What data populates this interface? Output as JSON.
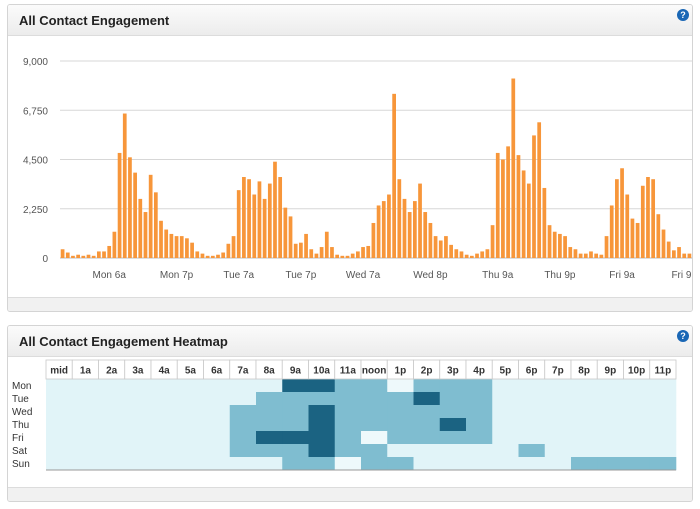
{
  "panels": {
    "engagement": {
      "title": "All Contact Engagement",
      "help_icon": "?"
    },
    "heatmap": {
      "title": "All Contact Engagement Heatmap",
      "help_icon": "?"
    }
  },
  "colors": {
    "bar": "#f7963a",
    "heat_low": "#e1f4f8",
    "heat_mid": "#7fbdd0",
    "heat_high": "#1b6382"
  },
  "chart_data": [
    {
      "type": "bar",
      "title": "All Contact Engagement",
      "ylim": [
        0,
        9000
      ],
      "yticks": [
        0,
        2250,
        4500,
        6750,
        9000
      ],
      "ytick_labels": [
        "0",
        "2,250",
        "4,500",
        "6,750",
        "9,000"
      ],
      "xtick_labels": [
        {
          "label": "Mon 6a",
          "index": 9
        },
        {
          "label": "Mon 7p",
          "index": 22
        },
        {
          "label": "Tue 7a",
          "index": 34
        },
        {
          "label": "Tue 7p",
          "index": 46
        },
        {
          "label": "Wed 7a",
          "index": 58
        },
        {
          "label": "Wed 8p",
          "index": 71
        },
        {
          "label": "Thu 9a",
          "index": 84
        },
        {
          "label": "Thu 9p",
          "index": 96
        },
        {
          "label": "Fri 9a",
          "index": 108
        },
        {
          "label": "Fri 9p",
          "index": 120
        }
      ],
      "values": [
        400,
        250,
        100,
        150,
        100,
        150,
        100,
        300,
        300,
        550,
        1200,
        4800,
        6600,
        4600,
        3900,
        2700,
        2100,
        3800,
        3000,
        1700,
        1300,
        1100,
        1000,
        1000,
        900,
        700,
        300,
        200,
        100,
        100,
        150,
        250,
        650,
        1000,
        3100,
        3700,
        3600,
        2900,
        3500,
        2700,
        3400,
        4400,
        3700,
        2300,
        1900,
        650,
        700,
        1100,
        400,
        200,
        500,
        1200,
        500,
        150,
        100,
        100,
        200,
        300,
        500,
        550,
        1600,
        2400,
        2600,
        2900,
        7500,
        3600,
        2700,
        2100,
        2600,
        3400,
        2100,
        1600,
        1000,
        800,
        1000,
        600,
        400,
        300,
        150,
        100,
        200,
        300,
        400,
        1500,
        4800,
        4500,
        5100,
        8200,
        4700,
        4000,
        3400,
        5600,
        6200,
        3200,
        1500,
        1200,
        1100,
        1000,
        500,
        400,
        200,
        200,
        300,
        200,
        150,
        1000,
        2400,
        3600,
        4100,
        2900,
        1800,
        1600,
        3300,
        3700,
        3600,
        2000,
        1300,
        750,
        350,
        500,
        200,
        200
      ]
    },
    {
      "type": "heatmap",
      "title": "All Contact Engagement Heatmap",
      "columns": [
        "mid",
        "1a",
        "2a",
        "3a",
        "4a",
        "5a",
        "6a",
        "7a",
        "8a",
        "9a",
        "10a",
        "11a",
        "noon",
        "1p",
        "2p",
        "3p",
        "4p",
        "5p",
        "6p",
        "7p",
        "8p",
        "9p",
        "10p",
        "11p"
      ],
      "rows": [
        "Mon",
        "Tue",
        "Wed",
        "Thu",
        "Fri",
        "Sat",
        "Sun"
      ],
      "levels": [
        [
          0,
          0,
          0,
          0,
          0,
          0,
          0,
          0,
          0,
          3,
          3,
          2,
          2,
          1,
          2,
          2,
          2,
          0,
          0,
          0,
          0,
          0,
          0,
          0
        ],
        [
          0,
          0,
          0,
          0,
          0,
          0,
          0,
          0,
          2,
          2,
          2,
          2,
          2,
          2,
          3,
          2,
          2,
          0,
          0,
          0,
          0,
          0,
          0,
          0
        ],
        [
          0,
          0,
          0,
          0,
          0,
          0,
          0,
          2,
          2,
          2,
          3,
          2,
          2,
          2,
          2,
          2,
          2,
          0,
          0,
          0,
          0,
          0,
          0,
          0
        ],
        [
          0,
          0,
          0,
          0,
          0,
          0,
          0,
          2,
          2,
          2,
          3,
          2,
          2,
          2,
          2,
          3,
          2,
          0,
          0,
          0,
          0,
          0,
          0,
          0
        ],
        [
          0,
          0,
          0,
          0,
          0,
          0,
          0,
          2,
          3,
          3,
          3,
          2,
          1,
          2,
          2,
          2,
          2,
          0,
          0,
          0,
          0,
          0,
          0,
          0
        ],
        [
          0,
          0,
          0,
          0,
          0,
          0,
          0,
          2,
          2,
          2,
          3,
          2,
          2,
          0,
          0,
          0,
          0,
          0,
          2,
          0,
          0,
          0,
          0,
          0
        ],
        [
          0,
          0,
          0,
          0,
          0,
          0,
          0,
          0,
          0,
          2,
          2,
          1,
          2,
          2,
          0,
          0,
          0,
          0,
          0,
          0,
          2,
          2,
          2,
          2
        ]
      ]
    }
  ]
}
